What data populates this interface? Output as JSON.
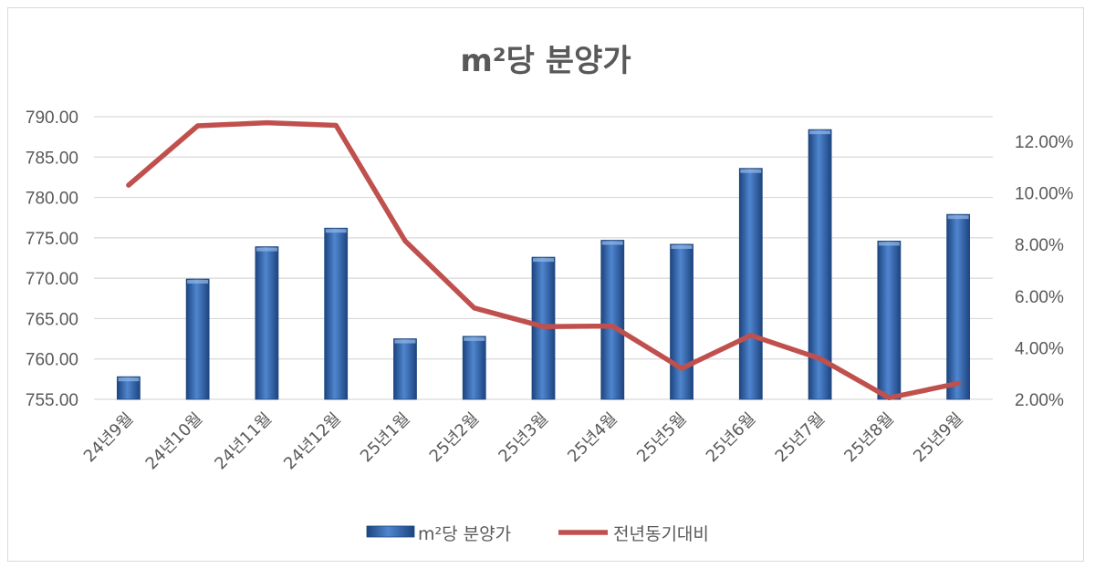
{
  "chart_data": {
    "type": "bar+line",
    "title": "m²당 분양가",
    "categories": [
      "24년9월",
      "24년10월",
      "24년11월",
      "24년12월",
      "25년1월",
      "25년2월",
      "25년3월",
      "25년4월",
      "25년5월",
      "25년6월",
      "25년7월",
      "25년8월",
      "25년9월"
    ],
    "series": [
      {
        "name": "m²당 분양가",
        "type": "bar",
        "axis": "left",
        "color": "#2e5fa3",
        "values": [
          757.8,
          769.9,
          773.9,
          776.2,
          762.5,
          762.8,
          772.6,
          774.7,
          774.2,
          783.6,
          788.4,
          774.6,
          777.9
        ]
      },
      {
        "name": "전년동기대비",
        "type": "line",
        "axis": "right",
        "color": "#c0504d",
        "values": [
          0.103,
          0.126,
          0.1272,
          0.1262,
          0.0814,
          0.0554,
          0.0482,
          0.0484,
          0.032,
          0.0448,
          0.0358,
          0.0206,
          0.0262
        ]
      }
    ],
    "y_left": {
      "min": 755,
      "max": 790,
      "ticks": [
        "755.00",
        "760.00",
        "765.00",
        "770.00",
        "775.00",
        "780.00",
        "785.00",
        "790.00"
      ]
    },
    "y_right": {
      "min": 0.02,
      "max": 0.12,
      "ticks": [
        "2.00%",
        "4.00%",
        "6.00%",
        "8.00%",
        "10.00%",
        "12.00%"
      ]
    },
    "grid": true,
    "legend_position": "bottom"
  }
}
